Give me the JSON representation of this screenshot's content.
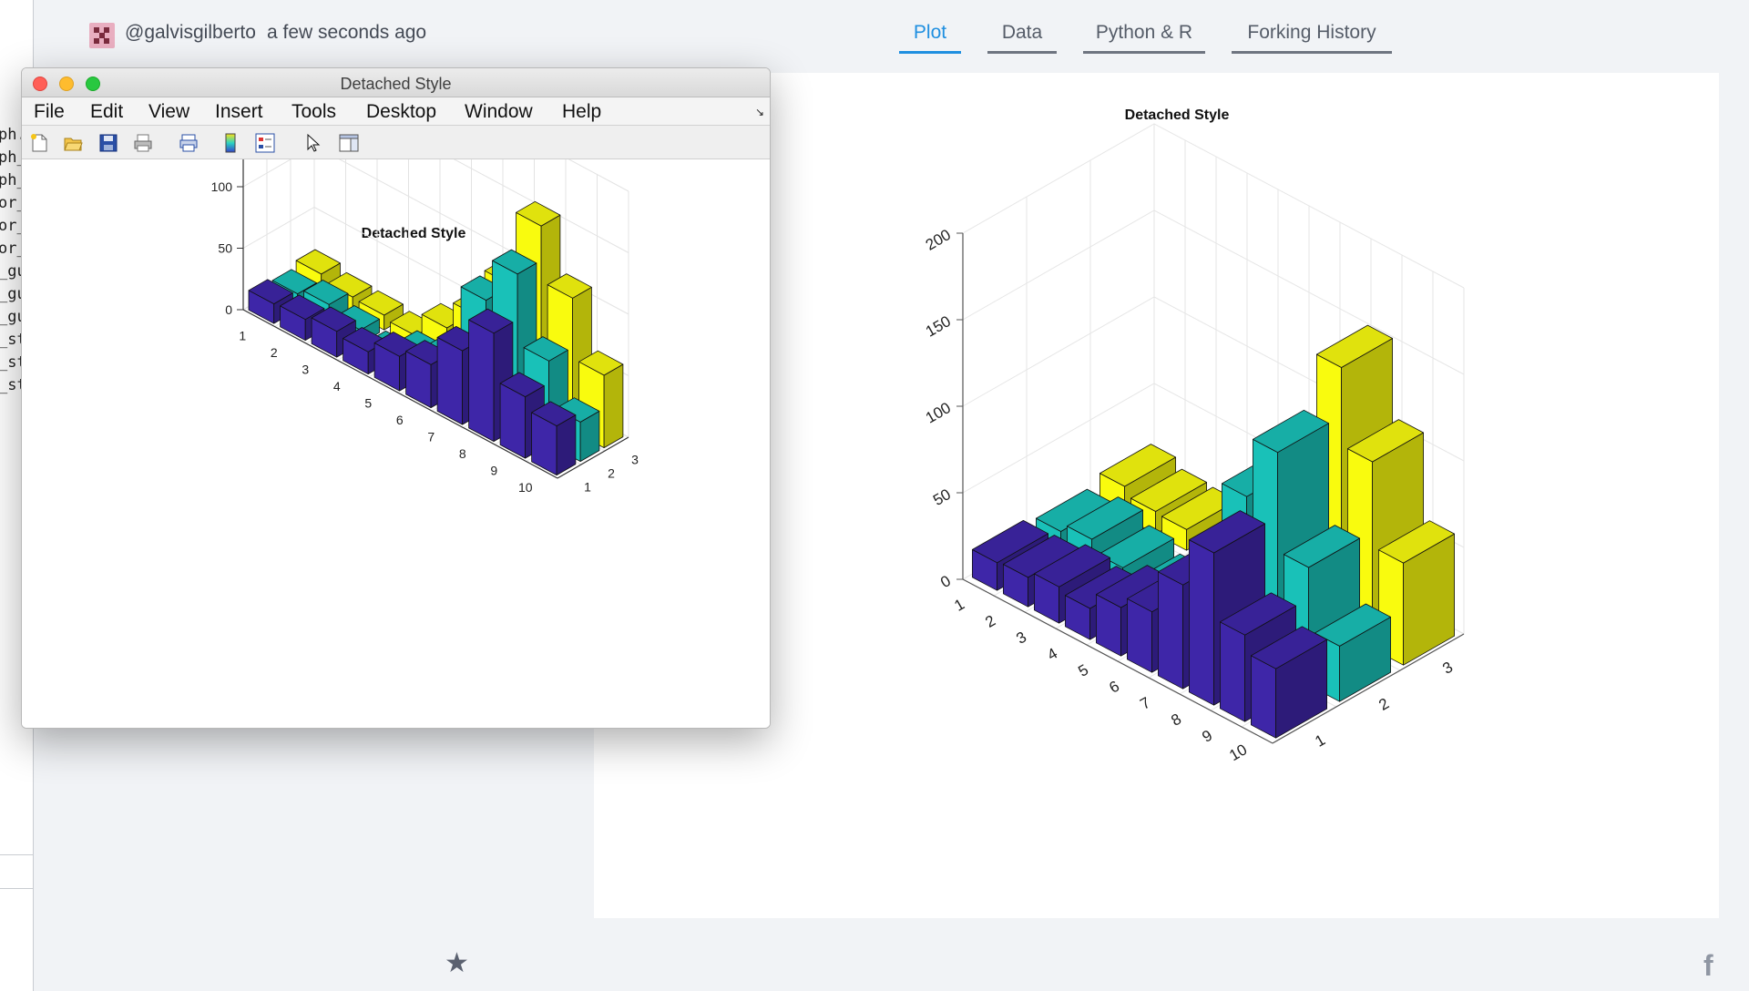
{
  "editor_fragments": [
    "ph.",
    "ph_",
    "ph_",
    "or_",
    "or_",
    "or_",
    "_gu",
    "_gu",
    "_gu",
    "_st",
    "_st",
    "_st"
  ],
  "header": {
    "username": "@galvisgilberto",
    "timestamp": "a few seconds ago"
  },
  "tabs": [
    {
      "label": "Plot",
      "active": true
    },
    {
      "label": "Data",
      "active": false
    },
    {
      "label": "Python & R",
      "active": false
    },
    {
      "label": "Forking History",
      "active": false
    }
  ],
  "window": {
    "title": "Detached Style",
    "menu": [
      "File",
      "Edit",
      "View",
      "Insert",
      "Tools",
      "Desktop",
      "Window",
      "Help"
    ],
    "resize_glyph": "↘"
  },
  "icons": {
    "star": "★",
    "facebook": "f"
  },
  "colors": {
    "series1": "#3e26a8",
    "series2": "#19c1b8",
    "series3": "#f9fb0e",
    "accent": "#1f8fe0"
  },
  "chart_data": [
    {
      "type": "bar3d",
      "title": "Detached Style",
      "categories": [
        "1",
        "2",
        "3",
        "4",
        "5",
        "6",
        "7",
        "8",
        "9",
        "10"
      ],
      "depth_labels": [
        "1",
        "2",
        "3"
      ],
      "zticks": [
        "0",
        "50",
        "100",
        "150",
        "200"
      ],
      "zlim": [
        0,
        200
      ],
      "series": [
        {
          "values": [
            16,
            17,
            21,
            18,
            28,
            35,
            60,
            88,
            50,
            40
          ]
        },
        {
          "values": [
            13,
            18,
            11,
            4,
            18,
            30,
            90,
            125,
            68,
            32
          ]
        },
        {
          "values": [
            18,
            13,
            12,
            9,
            29,
            52,
            92,
            153,
            108,
            59
          ]
        }
      ]
    },
    {
      "type": "bar3d",
      "title": "Detached Style",
      "categories": [
        "1",
        "2",
        "3",
        "4",
        "5",
        "6",
        "7",
        "8",
        "9",
        "10"
      ],
      "depth_labels": [
        "1",
        "2",
        "3"
      ],
      "zticks": [
        "0",
        "50",
        "100",
        "150",
        "200"
      ],
      "zlim": [
        0,
        200
      ],
      "series": [
        {
          "values": [
            16,
            17,
            21,
            18,
            28,
            35,
            60,
            88,
            50,
            40
          ]
        },
        {
          "values": [
            13,
            18,
            11,
            4,
            18,
            30,
            90,
            125,
            68,
            32
          ]
        },
        {
          "values": [
            18,
            13,
            12,
            9,
            29,
            52,
            92,
            153,
            108,
            59
          ]
        }
      ]
    }
  ]
}
